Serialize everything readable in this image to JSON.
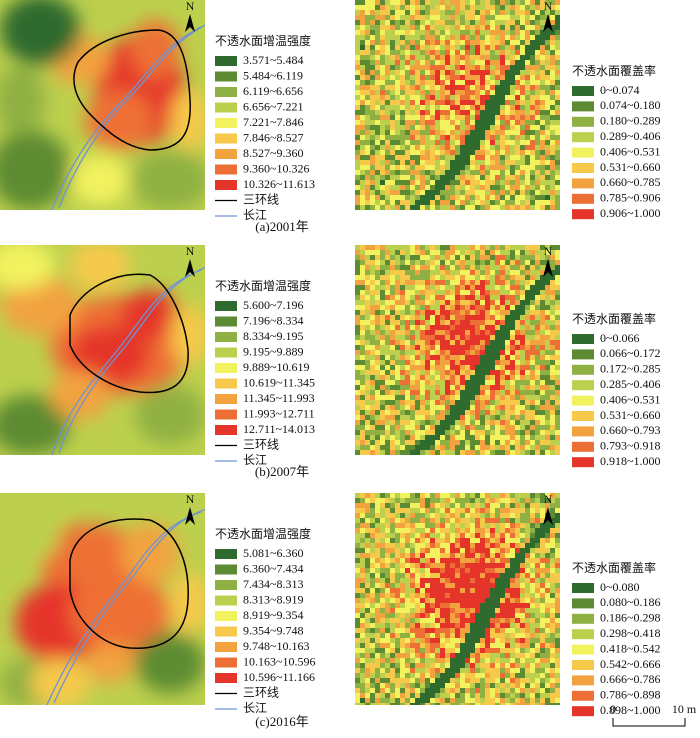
{
  "north_label": "N",
  "panels": [
    {
      "caption": "(a)2001年",
      "intensity_legend": {
        "title": "不透水面增温强度",
        "items": [
          "3.571~5.484",
          "5.484~6.119",
          "6.119~6.656",
          "6.656~7.221",
          "7.221~7.846",
          "7.846~8.527",
          "8.527~9.360",
          "9.360~10.326",
          "10.326~11.613"
        ],
        "colors": [
          "#2f6a2f",
          "#5d8b33",
          "#8fb043",
          "#bcd04d",
          "#f2f25e",
          "#f6c94b",
          "#f2a33f",
          "#ee6f35",
          "#e5352b"
        ],
        "lines": [
          {
            "label": "三环线",
            "color": "#000000"
          },
          {
            "label": "长江",
            "color": "#6f93d4"
          }
        ]
      },
      "coverage_legend": {
        "title": "不透水面覆盖率",
        "items": [
          "0~0.074",
          "0.074~0.180",
          "0.180~0.289",
          "0.289~0.406",
          "0.406~0.531",
          "0.531~0.660",
          "0.660~0.785",
          "0.785~0.906",
          "0.906~1.000"
        ],
        "colors": [
          "#2f6a2f",
          "#5d8b33",
          "#8fb043",
          "#bcd04d",
          "#f2f25e",
          "#f6c94b",
          "#f2a33f",
          "#ee6f35",
          "#e5352b"
        ]
      }
    },
    {
      "caption": "(b)2007年",
      "intensity_legend": {
        "title": "不透水面增温强度",
        "items": [
          "5.600~7.196",
          "7.196~8.334",
          "8.334~9.195",
          "9.195~9.889",
          "9.889~10.619",
          "10.619~11.345",
          "11.345~11.993",
          "11.993~12.711",
          "12.711~14.013"
        ],
        "colors": [
          "#2f6a2f",
          "#5d8b33",
          "#8fb043",
          "#bcd04d",
          "#f2f25e",
          "#f6c94b",
          "#f2a33f",
          "#ee6f35",
          "#e5352b"
        ],
        "lines": [
          {
            "label": "三环线",
            "color": "#000000"
          },
          {
            "label": "长江",
            "color": "#6f93d4"
          }
        ]
      },
      "coverage_legend": {
        "title": "不透水面覆盖率",
        "items": [
          "0~0.066",
          "0.066~0.172",
          "0.172~0.285",
          "0.285~0.406",
          "0.406~0.531",
          "0.531~0.660",
          "0.660~0.793",
          "0.793~0.918",
          "0.918~1.000"
        ],
        "colors": [
          "#2f6a2f",
          "#5d8b33",
          "#8fb043",
          "#bcd04d",
          "#f2f25e",
          "#f6c94b",
          "#f2a33f",
          "#ee6f35",
          "#e5352b"
        ]
      }
    },
    {
      "caption": "(c)2016年",
      "intensity_legend": {
        "title": "不透水面增温强度",
        "items": [
          "5.081~6.360",
          "6.360~7.434",
          "7.434~8.313",
          "8.313~8.919",
          "8.919~9.354",
          "9.354~9.748",
          "9.748~10.163",
          "10.163~10.596",
          "10.596~11.166"
        ],
        "colors": [
          "#2f6a2f",
          "#5d8b33",
          "#8fb043",
          "#bcd04d",
          "#f2f25e",
          "#f6c94b",
          "#f2a33f",
          "#ee6f35",
          "#e5352b"
        ],
        "lines": [
          {
            "label": "三环线",
            "color": "#000000"
          },
          {
            "label": "长江",
            "color": "#6f93d4"
          }
        ]
      },
      "coverage_legend": {
        "title": "不透水面覆盖率",
        "items": [
          "0~0.080",
          "0.080~0.186",
          "0.186~0.298",
          "0.298~0.418",
          "0.418~0.542",
          "0.542~0.666",
          "0.666~0.786",
          "0.786~0.898",
          "0.898~1.000"
        ],
        "colors": [
          "#2f6a2f",
          "#5d8b33",
          "#8fb043",
          "#bcd04d",
          "#f2f25e",
          "#f6c94b",
          "#f2a33f",
          "#ee6f35",
          "#e5352b"
        ]
      }
    }
  ],
  "scale_bar": {
    "labels": [
      "0",
      "10 m"
    ]
  }
}
